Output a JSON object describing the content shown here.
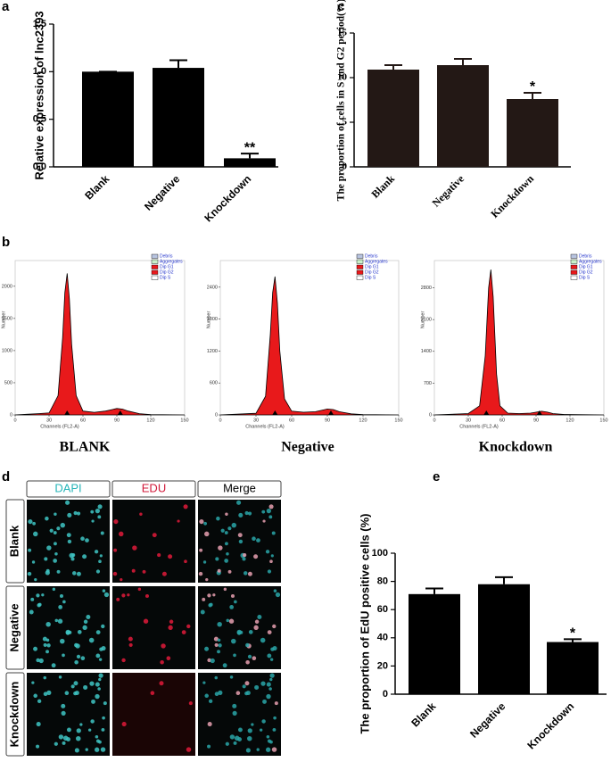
{
  "chart_data": [
    {
      "type": "bar",
      "panel": "a",
      "ylabel": "Relative expression of lnc2393",
      "categories": [
        "Blank",
        "Negative",
        "Knockdown"
      ],
      "values": [
        1.0,
        1.04,
        0.09
      ],
      "errors": [
        0,
        0.08,
        0.05
      ],
      "significance": [
        null,
        null,
        "**"
      ],
      "color": "#000000",
      "ylim": [
        0,
        1.5
      ],
      "yticks": [
        {
          "value": 0,
          "label": "0.0"
        },
        {
          "value": 0.5,
          "label": "0.5"
        },
        {
          "value": 1,
          "label": "1.0"
        },
        {
          "value": 1.5,
          "label": "1.5"
        }
      ]
    },
    {
      "type": "bar",
      "panel": "c",
      "ylabel": "The proportion of cells in S and G2 period(%)",
      "categories": [
        "Blank",
        "Negative",
        "Knockdown"
      ],
      "values": [
        10.9,
        11.4,
        7.6
      ],
      "errors": [
        0.5,
        0.7,
        0.7
      ],
      "significance": [
        null,
        null,
        "*"
      ],
      "color": "#231815",
      "ylim": [
        0,
        15
      ],
      "yticks": [
        0,
        5,
        10,
        15
      ]
    },
    {
      "type": "area",
      "panel": "b",
      "title": "BLANK",
      "xlabel": "Channels (FL2-A)",
      "ylabel": "Number",
      "x": [
        0,
        10,
        20,
        30,
        38,
        42,
        44,
        46,
        48,
        50,
        54,
        60,
        70,
        80,
        90,
        95,
        100,
        110,
        120,
        150
      ],
      "values": [
        0,
        10,
        20,
        30,
        300,
        1200,
        1900,
        2200,
        1800,
        1100,
        300,
        60,
        40,
        60,
        100,
        90,
        60,
        20,
        5,
        0
      ],
      "color": "#e8191b",
      "xlim": [
        0,
        150
      ],
      "xticks": [
        0,
        30,
        60,
        90,
        120,
        150
      ],
      "ylim": [
        0,
        2400
      ],
      "yticks": [
        0,
        500,
        1000,
        1500,
        2000
      ],
      "legend": [
        {
          "label": "Debris",
          "color": "#b8c4e0"
        },
        {
          "label": "Aggregates",
          "color": "#c8f0c8"
        },
        {
          "label": "Dip G1",
          "color": "#e8191b"
        },
        {
          "label": "Dip G2",
          "color": "#e8191b"
        },
        {
          "label": "Dip S",
          "color": "#ffffff"
        }
      ]
    },
    {
      "type": "area",
      "title": "Negative",
      "xlabel": "Channels (FL2-A)",
      "ylabel": "Number",
      "x": [
        0,
        10,
        20,
        30,
        38,
        42,
        44,
        46,
        48,
        50,
        54,
        60,
        70,
        80,
        90,
        95,
        100,
        110,
        120,
        150
      ],
      "values": [
        0,
        10,
        20,
        30,
        350,
        1500,
        2300,
        2600,
        2100,
        1200,
        300,
        70,
        50,
        60,
        110,
        100,
        60,
        20,
        5,
        0
      ],
      "color": "#e8191b",
      "xlim": [
        0,
        150
      ],
      "xticks": [
        0,
        30,
        60,
        90,
        120,
        150
      ],
      "ylim": [
        0,
        2900
      ],
      "yticks": [
        0,
        600,
        1200,
        1800,
        2400
      ],
      "legend": [
        {
          "label": "Debris",
          "color": "#b8c4e0"
        },
        {
          "label": "Aggregates",
          "color": "#c8f0c8"
        },
        {
          "label": "Dip G1",
          "color": "#e8191b"
        },
        {
          "label": "Dip G2",
          "color": "#e8191b"
        },
        {
          "label": "Dip S",
          "color": "#ffffff"
        }
      ]
    },
    {
      "type": "area",
      "title": "Knockdown",
      "xlabel": "Channels (FL2-A)",
      "ylabel": "Number",
      "x": [
        0,
        10,
        20,
        30,
        40,
        45,
        48,
        50,
        52,
        55,
        58,
        65,
        75,
        85,
        95,
        100,
        105,
        115,
        125,
        150
      ],
      "values": [
        0,
        10,
        20,
        30,
        200,
        1300,
        2800,
        3200,
        2600,
        900,
        200,
        40,
        30,
        40,
        80,
        60,
        30,
        10,
        5,
        0
      ],
      "color": "#e8191b",
      "xlim": [
        0,
        150
      ],
      "xticks": [
        0,
        30,
        60,
        90,
        120,
        150
      ],
      "ylim": [
        0,
        3400
      ],
      "yticks": [
        0,
        700,
        1400,
        2100,
        2800
      ],
      "legend": [
        {
          "label": "Debris",
          "color": "#b8c4e0"
        },
        {
          "label": "Aggregates",
          "color": "#c8f0c8"
        },
        {
          "label": "Dip G1",
          "color": "#e8191b"
        },
        {
          "label": "Dip G2",
          "color": "#e8191b"
        },
        {
          "label": "Dip S",
          "color": "#ffffff"
        }
      ]
    },
    {
      "type": "bar",
      "panel": "e",
      "ylabel": "The proportion of EdU positive cells (%)",
      "categories": [
        "Blank",
        "Negative",
        "Knockdown"
      ],
      "values": [
        71,
        78,
        37
      ],
      "errors": [
        4,
        5,
        2
      ],
      "significance": [
        null,
        null,
        "*"
      ],
      "color": "#000000",
      "ylim": [
        0,
        100
      ],
      "yticks": [
        0,
        20,
        40,
        60,
        80,
        100
      ]
    }
  ],
  "image_panel": {
    "panel": "d",
    "columns": [
      "DAPI",
      "EDU",
      "Merge"
    ],
    "rows": [
      "Blank",
      "Negative",
      "Knockdown"
    ]
  }
}
